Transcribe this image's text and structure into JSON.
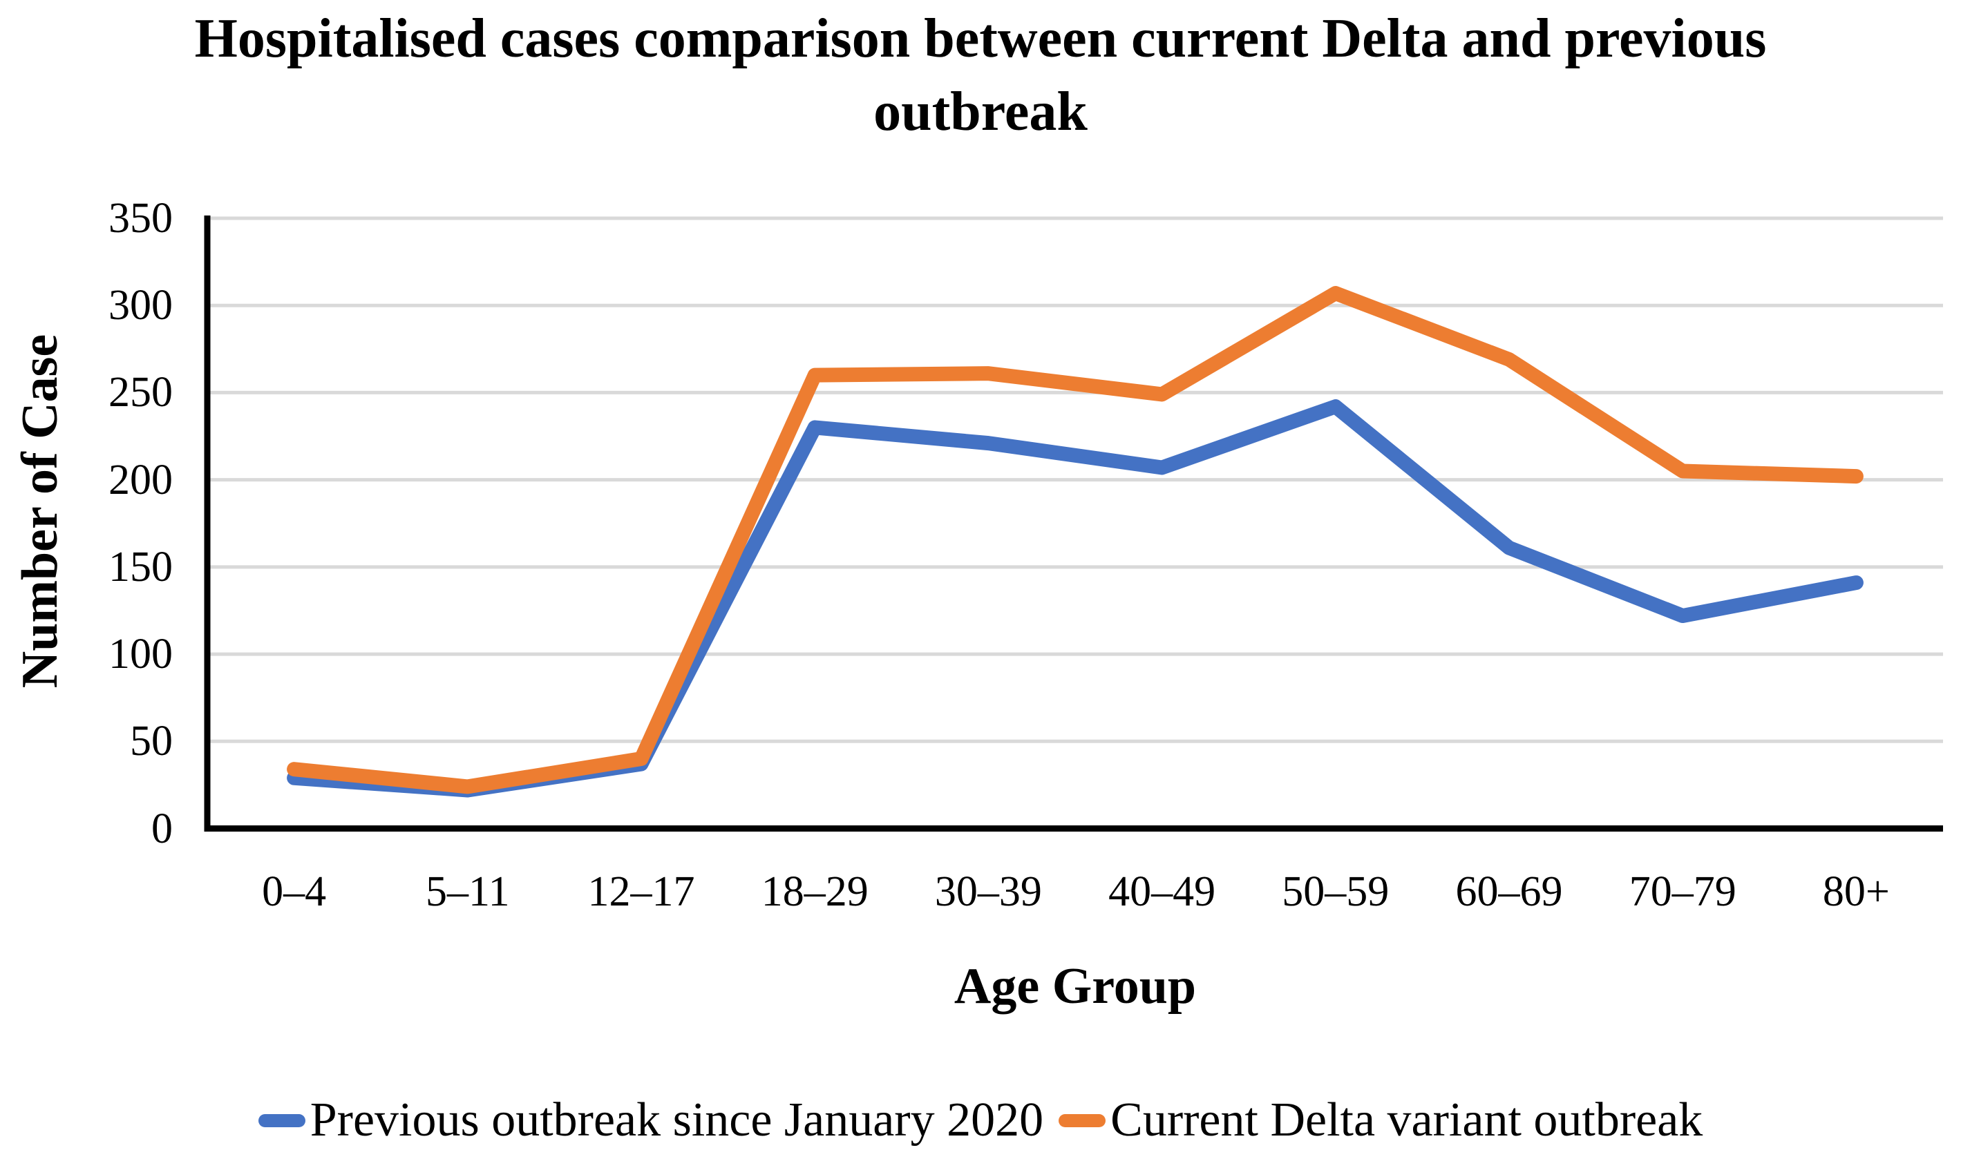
{
  "chart_data": {
    "type": "line",
    "title": "Hospitalised cases comparison between current Delta and previous outbreak",
    "xlabel": "Age Group",
    "ylabel": "Number of Case",
    "categories": [
      "0–4",
      "5–11",
      "12–17",
      "18–29",
      "30–39",
      "40–49",
      "50–59",
      "60–69",
      "70–79",
      "80+"
    ],
    "series": [
      {
        "name": "Previous outbreak since January 2020",
        "color": "#4472C4",
        "values": [
          29,
          22,
          37,
          230,
          221,
          207,
          242,
          161,
          122,
          141
        ]
      },
      {
        "name": "Current Delta variant outbreak",
        "color": "#ED7D31",
        "values": [
          34,
          24,
          40,
          260,
          261,
          249,
          307,
          269,
          205,
          202
        ]
      }
    ],
    "ylim": [
      0,
      350
    ],
    "ytick_step": 50,
    "yticks": [
      0,
      50,
      100,
      150,
      200,
      250,
      300,
      350
    ],
    "grid": true,
    "legend_position": "bottom"
  },
  "colors": {
    "axis": "#000000",
    "gridline": "#D9D9D9",
    "text": "#000000",
    "background": "#FFFFFF"
  }
}
